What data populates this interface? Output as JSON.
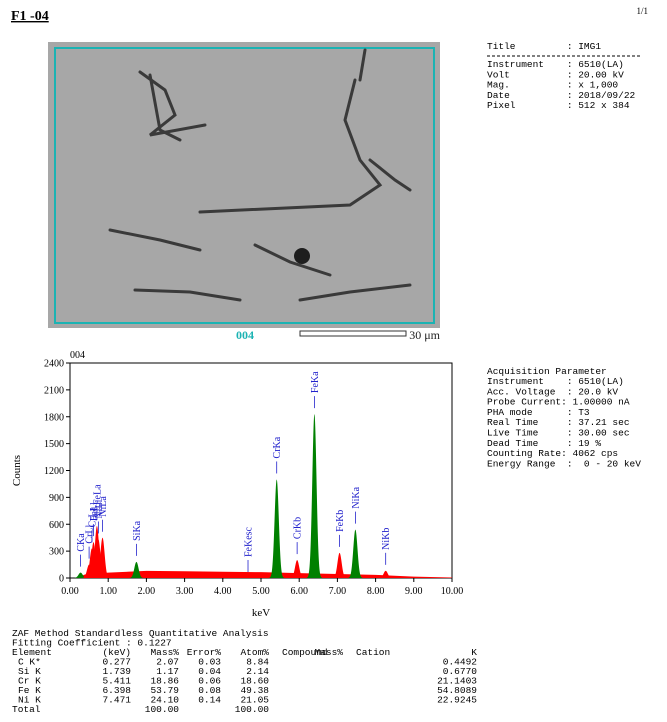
{
  "header": {
    "title": "F1 -04",
    "page": "1/1"
  },
  "image": {
    "label": "004",
    "scale": "30 μm"
  },
  "image_info": {
    "title_line": "Title         : IMG1",
    "lines": [
      "Instrument    : 6510(LA)",
      "Volt          : 20.00 kV",
      "Mag.          : x 1,000",
      "Date          : 2018/09/22",
      "Pixel         : 512 x 384"
    ]
  },
  "chart_data": {
    "type": "spectrum",
    "title": "004",
    "x_label": "keV",
    "y_label": "Counts",
    "xlim": [
      0,
      10
    ],
    "ylim": [
      0,
      2400
    ],
    "xticks": [
      {
        "value": 0,
        "label": "0.00"
      },
      {
        "value": 1,
        "label": "1.00"
      },
      {
        "value": 2,
        "label": "2.00"
      },
      {
        "value": 3,
        "label": "3.00"
      },
      {
        "value": 4,
        "label": "4.00"
      },
      {
        "value": 5,
        "label": "5.00"
      },
      {
        "value": 6,
        "label": "6.00"
      },
      {
        "value": 7,
        "label": "7.00"
      },
      {
        "value": 8,
        "label": "8.00"
      },
      {
        "value": 9,
        "label": "9.00"
      },
      {
        "value": 10,
        "label": "10.00"
      }
    ],
    "yticks": [
      0,
      300,
      600,
      900,
      1200,
      1500,
      1800,
      2100,
      2400
    ],
    "background": {
      "color": "#ff0000",
      "x": [
        0.15,
        0.4,
        1.0,
        2.0,
        3.0,
        4.0,
        5.0,
        6.0,
        7.0,
        8.0,
        9.0,
        10.0
      ],
      "values": [
        0,
        40,
        60,
        80,
        75,
        70,
        65,
        55,
        45,
        35,
        15,
        5
      ]
    },
    "label_color": "#2222cc",
    "peaks": [
      {
        "label": "CKa",
        "energy": 0.277,
        "height": 60,
        "color": "#008000"
      },
      {
        "label": "CrLl",
        "energy": 0.5,
        "height": 150,
        "color": "#ff0000"
      },
      {
        "label": "CrLa",
        "energy": 0.573,
        "height": 330,
        "color": "#ff0000"
      },
      {
        "label": "FeLl",
        "energy": 0.615,
        "height": 400,
        "color": "#ff0000"
      },
      {
        "label": "FeLa",
        "energy": 0.705,
        "height": 580,
        "color": "#ff0000"
      },
      {
        "label": "NiLl",
        "energy": 0.743,
        "height": 430,
        "color": "#ff0000"
      },
      {
        "label": "NiLa",
        "energy": 0.851,
        "height": 450,
        "color": "#ff0000"
      },
      {
        "label": "SiKa",
        "energy": 1.739,
        "height": 180,
        "color": "#008000"
      },
      {
        "label": "FeKesc",
        "energy": 4.66,
        "height": 0,
        "color": "#ff0000"
      },
      {
        "label": "CrKa",
        "energy": 5.411,
        "height": 1100,
        "color": "#008000"
      },
      {
        "label": "CrKb",
        "energy": 5.946,
        "height": 200,
        "color": "#ff0000"
      },
      {
        "label": "FeKa",
        "energy": 6.398,
        "height": 1830,
        "color": "#008000"
      },
      {
        "label": "FeKb",
        "energy": 7.057,
        "height": 280,
        "color": "#ff0000"
      },
      {
        "label": "NiKa",
        "energy": 7.471,
        "height": 540,
        "color": "#008000"
      },
      {
        "label": "NiKb",
        "energy": 8.264,
        "height": 80,
        "color": "#ff0000"
      }
    ]
  },
  "acquisition": {
    "title": "Acquisition Parameter",
    "lines": [
      "Instrument    : 6510(LA)",
      "Acc. Voltage  : 20.0 kV",
      "Probe Current: 1.00000 nA",
      "PHA mode      : T3",
      "Real Time     : 37.21 sec",
      "Live Time     : 30.00 sec",
      "Dead Time     : 19 %",
      "Counting Rate: 4062 cps",
      "Energy Range  :  0 - 20 keV"
    ]
  },
  "zaf": {
    "title": "ZAF Method Standardless Quantitative Analysis",
    "fitting": "Fitting Coefficient : 0.1227",
    "header": [
      "Element",
      "(keV)",
      "Mass%",
      "Error%",
      "Atom%",
      "Compound",
      "Mass%",
      "Cation",
      "K"
    ],
    "rows": [
      {
        "element": "C K*",
        "kev": "0.277",
        "mass": "2.07",
        "error": "0.03",
        "atom": "8.84",
        "k": "0.4492"
      },
      {
        "element": "Si K",
        "kev": "1.739",
        "mass": "1.17",
        "error": "0.04",
        "atom": "2.14",
        "k": "0.6770"
      },
      {
        "element": "Cr K",
        "kev": "5.411",
        "mass": "18.86",
        "error": "0.06",
        "atom": "18.60",
        "k": "21.1403"
      },
      {
        "element": "Fe K",
        "kev": "6.398",
        "mass": "53.79",
        "error": "0.08",
        "atom": "49.38",
        "k": "54.8089"
      },
      {
        "element": "Ni K",
        "kev": "7.471",
        "mass": "24.10",
        "error": "0.14",
        "atom": "21.05",
        "k": "22.9245"
      }
    ],
    "total": {
      "element": "Total",
      "mass": "100.00",
      "atom": "100.00"
    }
  }
}
